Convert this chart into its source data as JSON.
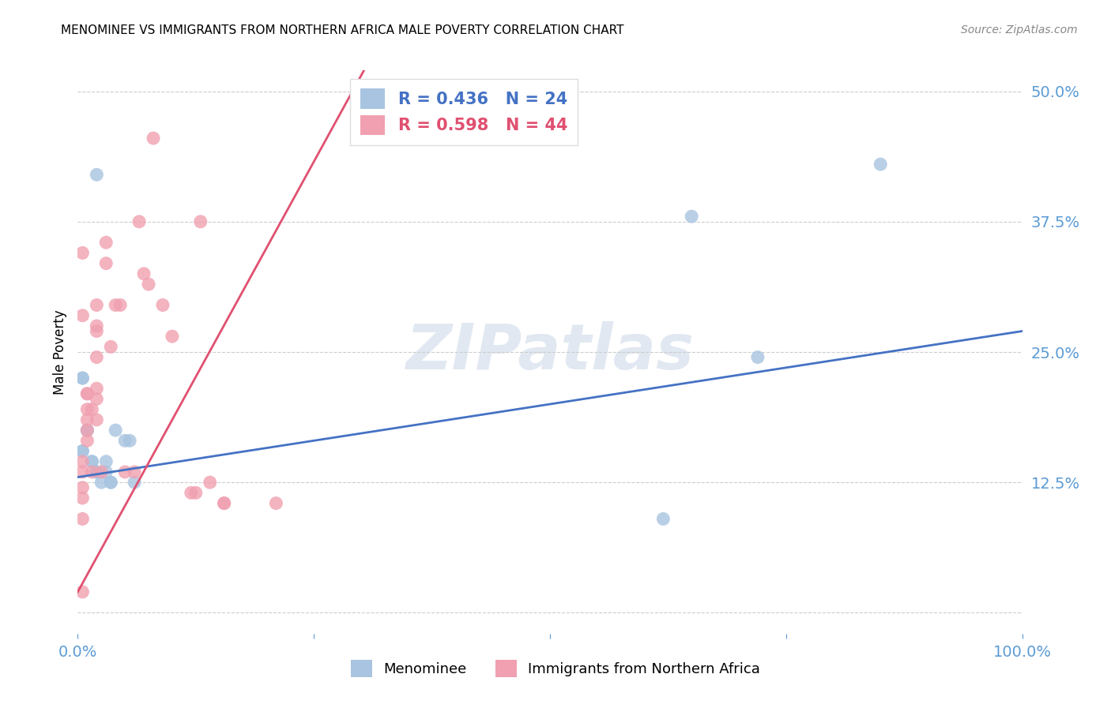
{
  "title": "MENOMINEE VS IMMIGRANTS FROM NORTHERN AFRICA MALE POVERTY CORRELATION CHART",
  "source": "Source: ZipAtlas.com",
  "ylabel": "Male Poverty",
  "watermark": "ZIPatlas",
  "series1_label": "Menominee",
  "series2_label": "Immigrants from Northern Africa",
  "series1_color": "#a8c4e0",
  "series2_color": "#f0a0b0",
  "line1_color": "#4472c4",
  "line2_color": "#e05070",
  "R1": 0.436,
  "N1": 24,
  "R2": 0.598,
  "N2": 44,
  "xlim": [
    0.0,
    1.0
  ],
  "ylim": [
    -0.02,
    0.52
  ],
  "yticks": [
    0.0,
    0.125,
    0.25,
    0.375,
    0.5
  ],
  "ytick_labels": [
    "",
    "12.5%",
    "25.0%",
    "37.5%",
    "50.0%"
  ],
  "xticks": [
    0.0,
    0.25,
    0.5,
    0.75,
    1.0
  ],
  "xtick_labels": [
    "0.0%",
    "",
    "",
    "",
    "100.0%"
  ],
  "series1_x": [
    0.02,
    0.005,
    0.005,
    0.005,
    0.005,
    0.01,
    0.01,
    0.015,
    0.015,
    0.02,
    0.02,
    0.025,
    0.03,
    0.03,
    0.035,
    0.035,
    0.04,
    0.05,
    0.055,
    0.06,
    0.62,
    0.65,
    0.72,
    0.85
  ],
  "series1_y": [
    0.42,
    0.225,
    0.225,
    0.155,
    0.155,
    0.175,
    0.175,
    0.145,
    0.145,
    0.135,
    0.135,
    0.125,
    0.145,
    0.135,
    0.125,
    0.125,
    0.175,
    0.165,
    0.165,
    0.125,
    0.09,
    0.38,
    0.245,
    0.43
  ],
  "series2_x": [
    0.005,
    0.005,
    0.005,
    0.005,
    0.005,
    0.005,
    0.01,
    0.01,
    0.01,
    0.01,
    0.01,
    0.01,
    0.015,
    0.015,
    0.02,
    0.02,
    0.02,
    0.02,
    0.02,
    0.02,
    0.02,
    0.03,
    0.03,
    0.035,
    0.04,
    0.045,
    0.05,
    0.06,
    0.065,
    0.07,
    0.075,
    0.08,
    0.09,
    0.1,
    0.12,
    0.125,
    0.13,
    0.14,
    0.155,
    0.155,
    0.21,
    0.005,
    0.005,
    0.025
  ],
  "series2_y": [
    0.145,
    0.135,
    0.12,
    0.11,
    0.09,
    0.02,
    0.21,
    0.21,
    0.195,
    0.185,
    0.175,
    0.165,
    0.195,
    0.135,
    0.295,
    0.275,
    0.27,
    0.245,
    0.215,
    0.205,
    0.185,
    0.355,
    0.335,
    0.255,
    0.295,
    0.295,
    0.135,
    0.135,
    0.375,
    0.325,
    0.315,
    0.455,
    0.295,
    0.265,
    0.115,
    0.115,
    0.375,
    0.125,
    0.105,
    0.105,
    0.105,
    0.285,
    0.345,
    0.135
  ],
  "title_fontsize": 11,
  "axis_label_color": "#5b9bd5",
  "background_color": "#ffffff",
  "grid_color": "#cccccc"
}
